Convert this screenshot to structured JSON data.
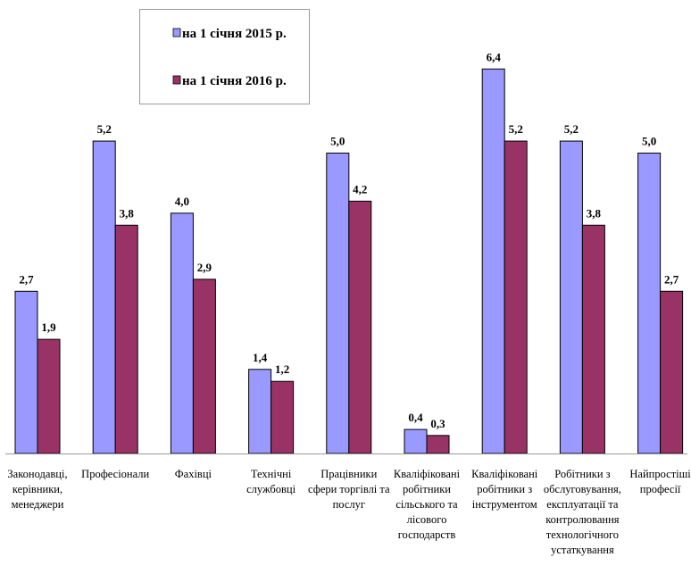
{
  "chart_data": {
    "type": "bar",
    "title": "",
    "xlabel": "",
    "ylabel": "",
    "ylim": [
      0,
      6.4
    ],
    "grid": false,
    "legend_position": "top-center",
    "categories": [
      [
        "Законодавці,",
        "керівники,",
        "менеджери"
      ],
      [
        "Професіонали"
      ],
      [
        "Фахівці"
      ],
      [
        "Технічні",
        "службовці"
      ],
      [
        "Працівники",
        "сфери торгівлі та",
        "послуг"
      ],
      [
        "Кваліфіковані",
        "робітники",
        "сільського та",
        "лісового",
        "господарств"
      ],
      [
        "Кваліфіковані",
        "робітники з",
        "інструментом"
      ],
      [
        "Робітники з",
        "обслуговування,",
        "експлуатації та",
        "контролювання",
        "технологічного",
        "устаткування"
      ],
      [
        "Найпростіші",
        "професії"
      ]
    ],
    "series": [
      {
        "name": "на 1 січня 2015 р.",
        "color": "#9999FF",
        "values": [
          2.7,
          5.2,
          4.0,
          1.4,
          5.0,
          0.4,
          6.4,
          5.2,
          5.0
        ],
        "labels": [
          "2,7",
          "5,2",
          "4,0",
          "1,4",
          "5,0",
          "0,4",
          "6,4",
          "5,2",
          "5,0"
        ]
      },
      {
        "name": "на 1 січня 2016 р.",
        "color": "#993366",
        "values": [
          1.9,
          3.8,
          2.9,
          1.2,
          4.2,
          0.3,
          5.2,
          3.8,
          2.7
        ],
        "labels": [
          "1,9",
          "3,8",
          "2,9",
          "1,2",
          "4,2",
          "0,3",
          "5,2",
          "3,8",
          "2,7"
        ]
      }
    ]
  }
}
